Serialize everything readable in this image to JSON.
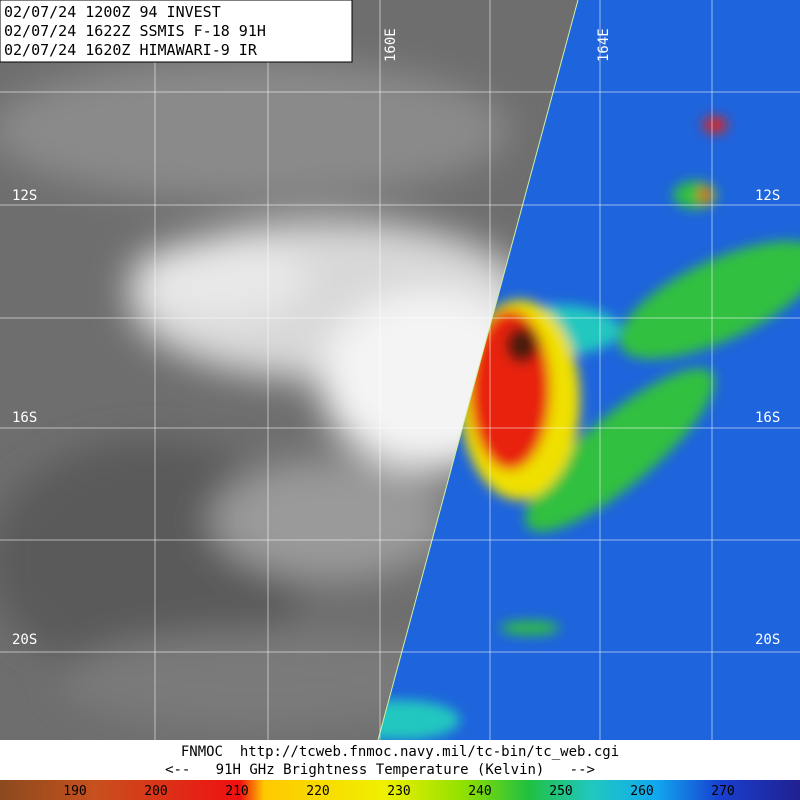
{
  "header": {
    "lines": [
      "02/07/24 1200Z  94 INVEST",
      "02/07/24 1622Z  SSMIS F-18 91H",
      "02/07/24 1620Z  HIMAWARI-9 IR"
    ]
  },
  "grid_labels": {
    "latitudes": [
      "12S",
      "16S",
      "20S"
    ],
    "longitudes": [
      "160E",
      "164E"
    ]
  },
  "footer": {
    "source": "FNMOC  http://tcweb.fnmoc.navy.mil/tc-bin/tc_web.cgi",
    "caption": "<--   91H GHz Brightness Temperature (Kelvin)   -->"
  },
  "colorbar": {
    "ticks": [
      190,
      200,
      210,
      220,
      230,
      240,
      250,
      260,
      270
    ]
  }
}
